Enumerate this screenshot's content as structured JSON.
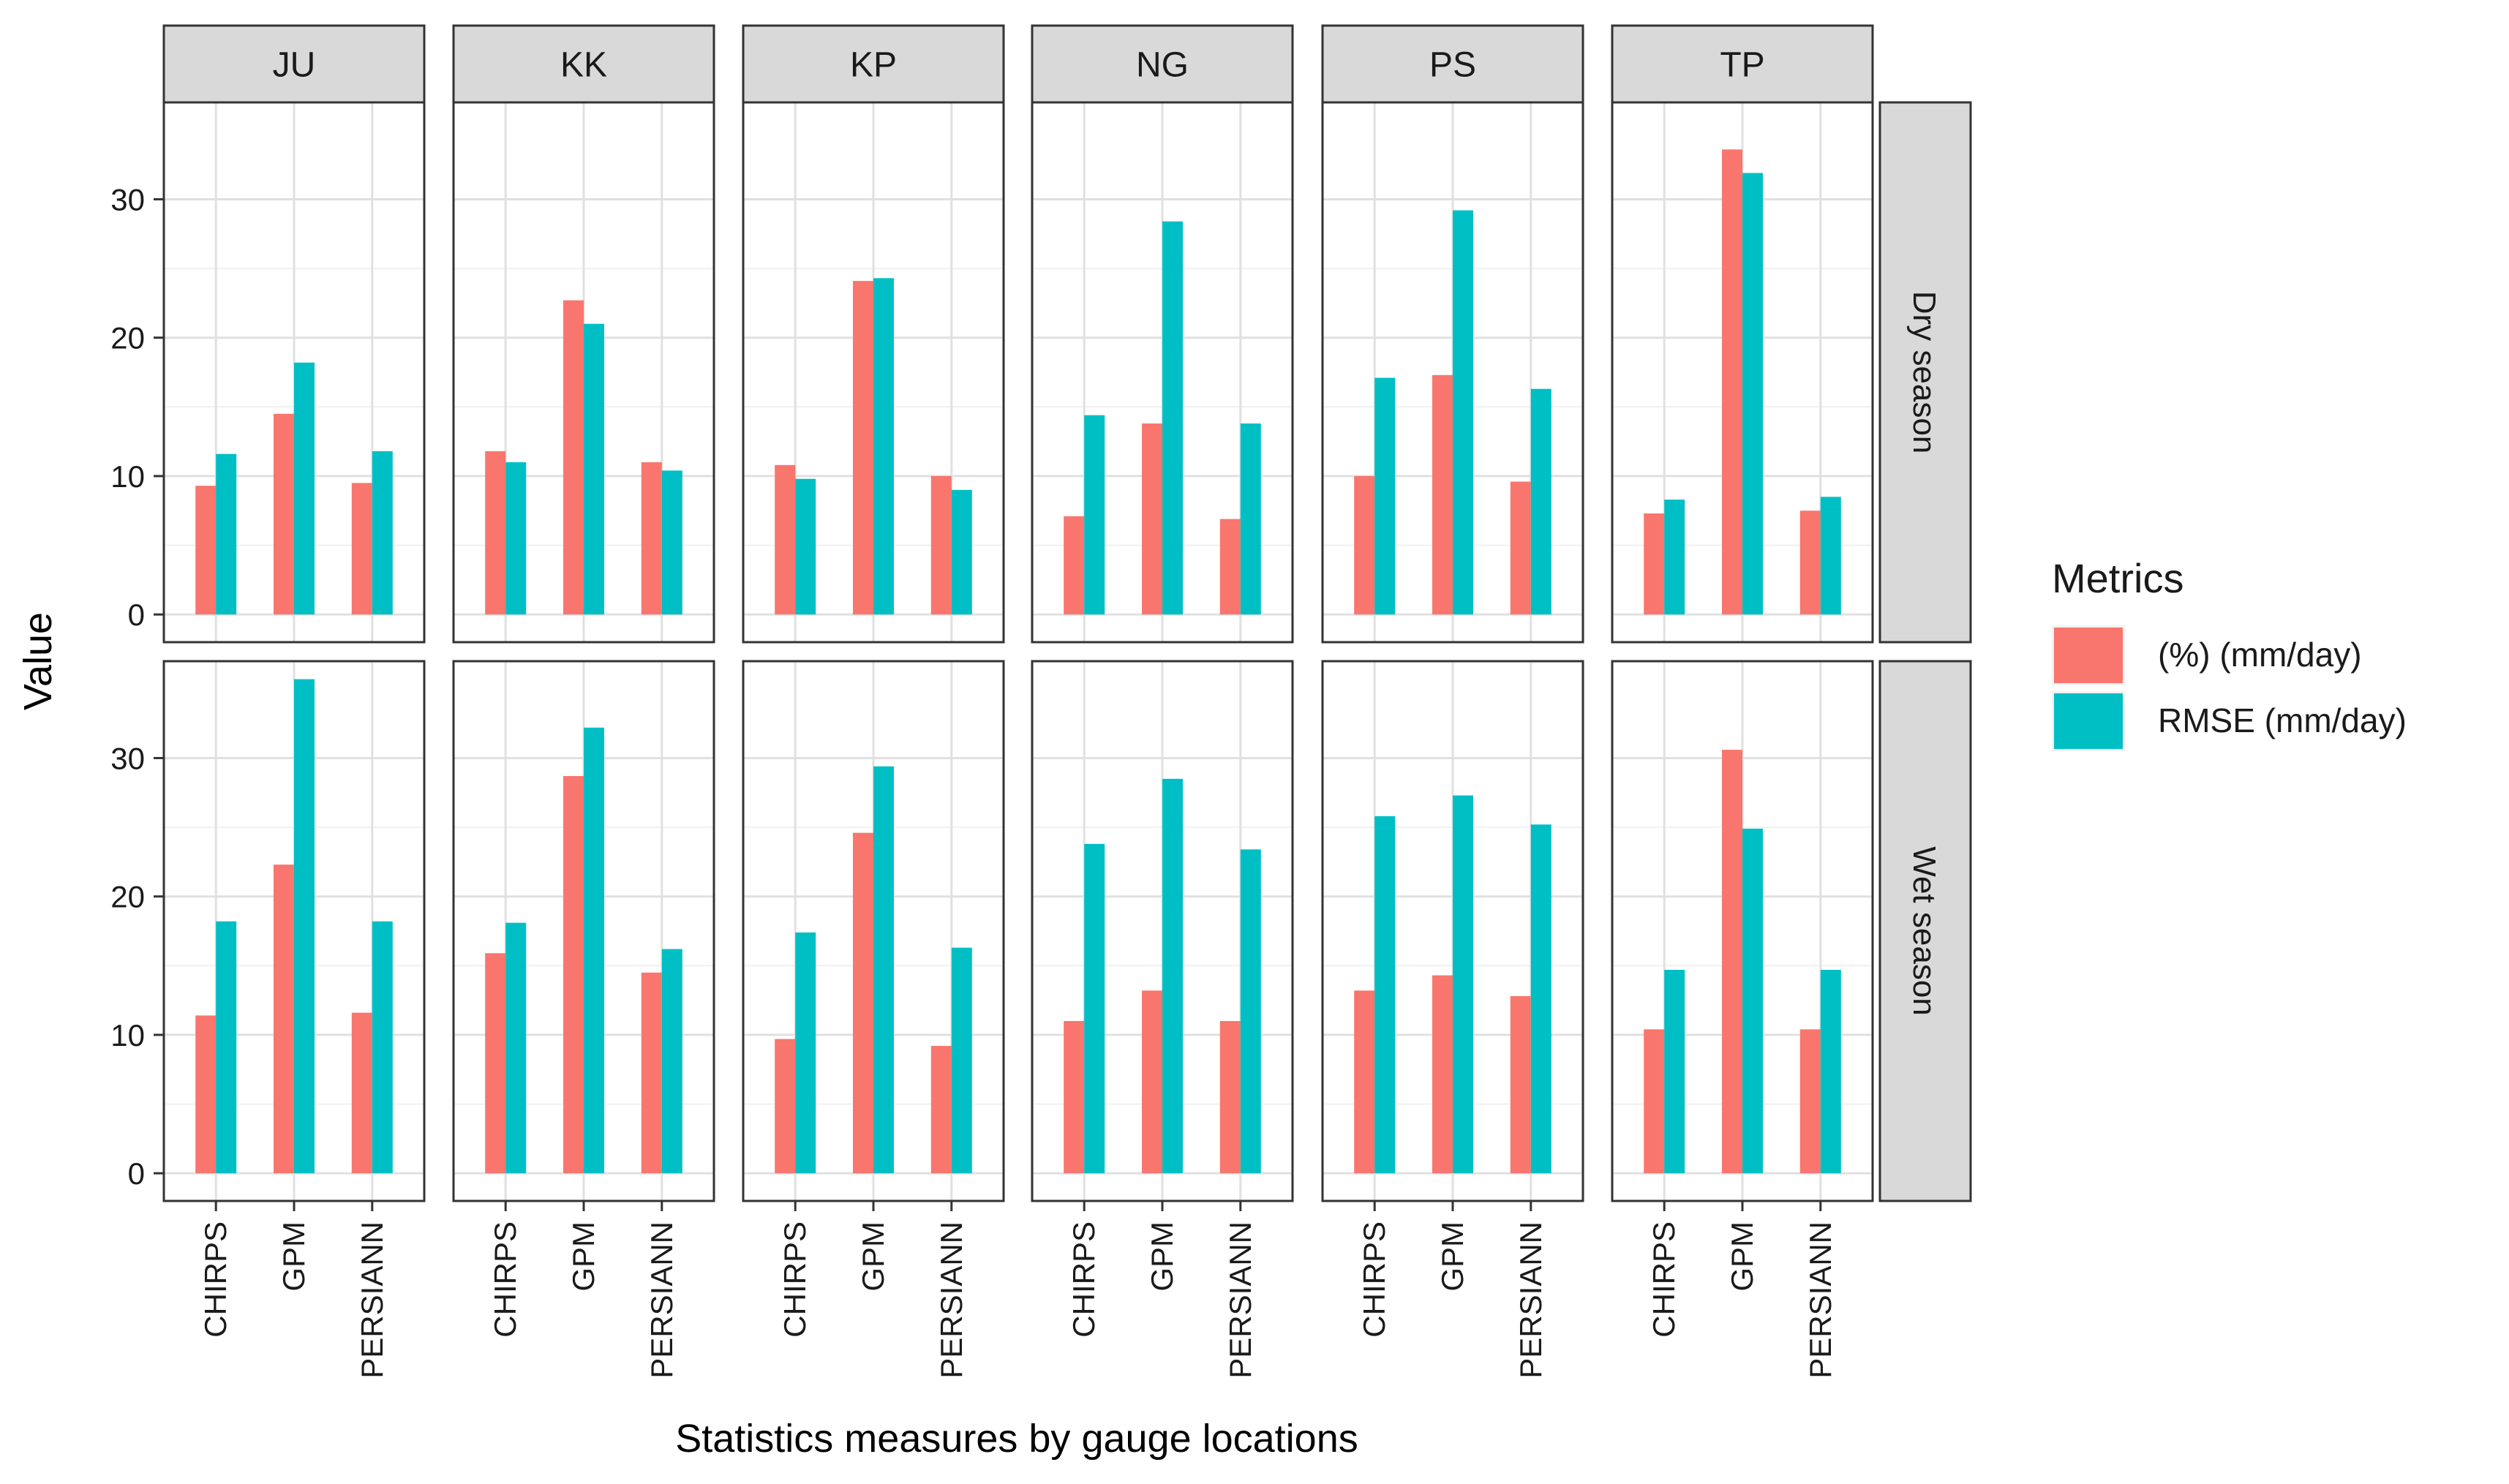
{
  "chart_data": {
    "type": "bar",
    "facet_columns": [
      "JU",
      "KK",
      "KP",
      "NG",
      "PS",
      "TP"
    ],
    "facet_rows": [
      "Dry season",
      "Wet season"
    ],
    "categories": [
      "CHIRPS",
      "GPM",
      "PERSIANN"
    ],
    "xlabel": "Statistics measures by gauge locations",
    "ylabel": "Value",
    "ylim": [
      -2,
      37
    ],
    "yticks": [
      0,
      10,
      20,
      30
    ],
    "grid": true,
    "legend": {
      "title": "Metrics",
      "position": "right",
      "entries": [
        {
          "name": "(%) (mm/day)",
          "color": "#F8766D"
        },
        {
          "name": "RMSE (mm/day)",
          "color": "#00BFC4"
        }
      ]
    },
    "series": [
      {
        "name": "(%) (mm/day)",
        "color": "#F8766D",
        "values": {
          "Dry season": {
            "JU": [
              9.3,
              14.5,
              9.5
            ],
            "KK": [
              11.8,
              22.7,
              11.0
            ],
            "KP": [
              10.8,
              24.1,
              10.0
            ],
            "NG": [
              7.1,
              13.8,
              6.9
            ],
            "PS": [
              10.0,
              17.3,
              9.6
            ],
            "TP": [
              7.3,
              33.6,
              7.5
            ]
          },
          "Wet season": {
            "JU": [
              11.4,
              22.3,
              11.6
            ],
            "KK": [
              15.9,
              28.7,
              14.5
            ],
            "KP": [
              9.7,
              24.6,
              9.2
            ],
            "NG": [
              11.0,
              13.2,
              11.0
            ],
            "PS": [
              13.2,
              14.3,
              12.8
            ],
            "TP": [
              10.4,
              30.6,
              10.4
            ]
          }
        }
      },
      {
        "name": "RMSE (mm/day)",
        "color": "#00BFC4",
        "values": {
          "Dry season": {
            "JU": [
              11.6,
              18.2,
              11.8
            ],
            "KK": [
              11.0,
              21.0,
              10.4
            ],
            "KP": [
              9.8,
              24.3,
              9.0
            ],
            "NG": [
              14.4,
              28.4,
              13.8
            ],
            "PS": [
              17.1,
              29.2,
              16.3
            ],
            "TP": [
              8.3,
              31.9,
              8.5
            ]
          },
          "Wet season": {
            "JU": [
              18.2,
              35.7,
              18.2
            ],
            "KK": [
              18.1,
              32.2,
              16.2
            ],
            "KP": [
              17.4,
              29.4,
              16.3
            ],
            "NG": [
              23.8,
              28.5,
              23.4
            ],
            "PS": [
              25.8,
              27.3,
              25.2
            ],
            "TP": [
              14.7,
              24.9,
              14.7
            ]
          }
        }
      }
    ]
  }
}
